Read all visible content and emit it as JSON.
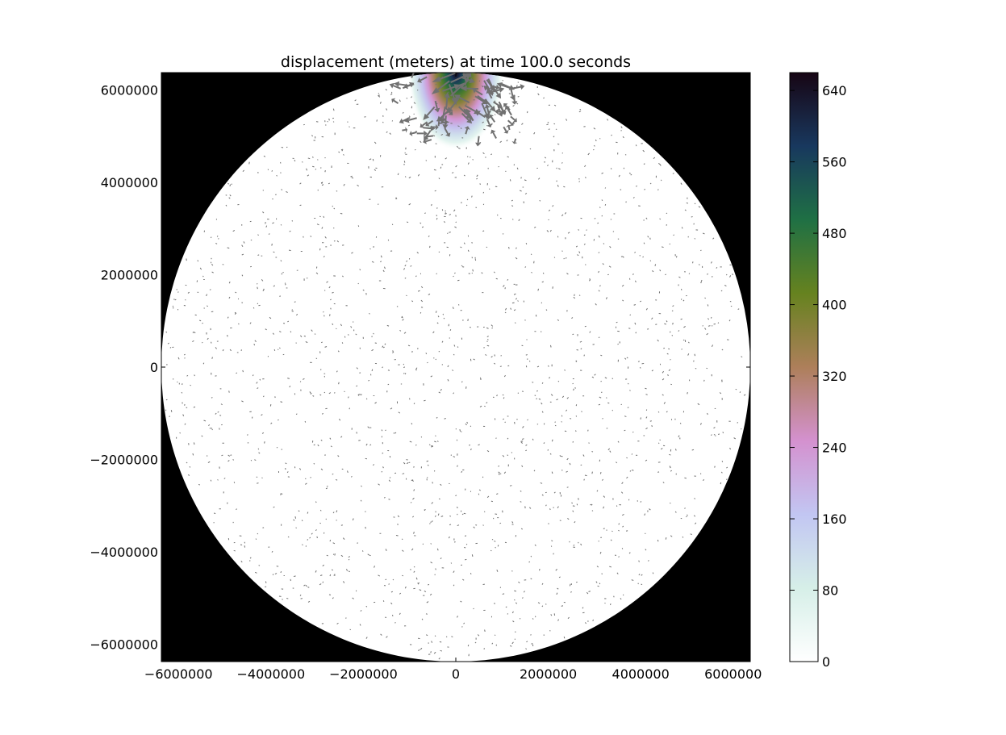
{
  "chart_data": {
    "type": "heatmap",
    "title": "displacement (meters) at time 100.0 seconds",
    "xlabel": "",
    "ylabel": "",
    "xlim": [
      -6371000,
      6371000
    ],
    "ylim": [
      -6371000,
      6371000
    ],
    "x_ticks": [
      -6000000,
      -4000000,
      -2000000,
      0,
      2000000,
      4000000,
      6000000
    ],
    "y_ticks": [
      -6000000,
      -4000000,
      -2000000,
      0,
      2000000,
      4000000,
      6000000
    ],
    "x_tick_labels": [
      "−6000000",
      "−4000000",
      "−2000000",
      "0",
      "2000000",
      "4000000",
      "6000000"
    ],
    "y_tick_labels": [
      "6000000",
      "4000000",
      "2000000",
      "0",
      "−2000000",
      "−4000000",
      "−6000000"
    ],
    "grid": false,
    "background_color": "#000000",
    "domain": "disk",
    "disk_radius": 6371000,
    "colormap": "cubehelix_r",
    "colorbar": {
      "range": [
        0,
        660
      ],
      "ticks": [
        0,
        80,
        160,
        240,
        320,
        400,
        480,
        560,
        640
      ],
      "tick_labels": [
        "0",
        "80",
        "160",
        "240",
        "320",
        "400",
        "480",
        "560",
        "640"
      ],
      "colors": [
        "#ffffff",
        "#d6efe8",
        "#c2c6f2",
        "#d491cf",
        "#ad7f5a",
        "#66821f",
        "#1f7044",
        "#18385e",
        "#170514"
      ]
    },
    "hotspot": {
      "center_x": 0,
      "center_y": 6371000,
      "peak_value": 660,
      "radius": 1600000
    },
    "quiver": {
      "color": "#707070",
      "description": "vector arrows of displacement; large arrows near the hotspot at the top of the disk, tiny arrows elsewhere",
      "n_background_arrows": 1800,
      "n_hotspot_arrows": 90
    }
  }
}
